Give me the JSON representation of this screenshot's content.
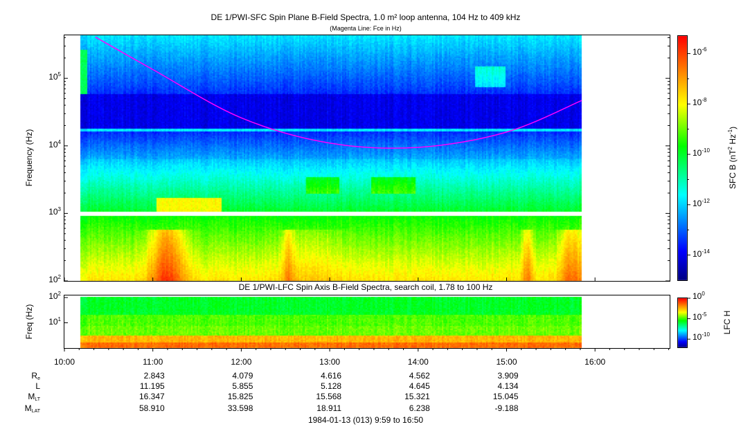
{
  "chart_data": [
    {
      "type": "heatmap",
      "title": "DE 1/PWI-SFC  Spin Plane B-Field Spectra, 1.0 m² loop antenna, 104 Hz to 409 kHz",
      "subtitle": "(Magenta Line: Fce in Hz)",
      "ylabel": "Frequency (Hz)",
      "yscale": "log",
      "ylim": [
        100,
        409000
      ],
      "yticks": [
        {
          "base": "10",
          "exp": "2"
        },
        {
          "base": "10",
          "exp": "3"
        },
        {
          "base": "10",
          "exp": "4"
        },
        {
          "base": "10",
          "exp": "5"
        }
      ],
      "xlim_hours": [
        10.0,
        16.85
      ],
      "data_time_range_hours": [
        10.18,
        15.85
      ],
      "colorbar": {
        "label": "SFC B (nT",
        "label_sup1": "2",
        "label_mid": " Hz",
        "label_sup2": "-1",
        "label_end": ")",
        "range_log10": [
          -15,
          -5.3
        ],
        "ticks": [
          {
            "base": "10",
            "exp": "-6",
            "log": -6
          },
          {
            "base": "10",
            "exp": "-8",
            "log": -8
          },
          {
            "base": "10",
            "exp": "-10",
            "log": -10
          },
          {
            "base": "10",
            "exp": "-12",
            "log": -12
          },
          {
            "base": "10",
            "exp": "-14",
            "log": -14
          }
        ]
      },
      "fce_line": {
        "color": "#ff00ff",
        "hours": [
          10.35,
          11.0,
          12.0,
          13.0,
          14.0,
          15.0,
          15.85
        ],
        "hz": [
          409000,
          135000,
          26000,
          11000,
          9500,
          16000,
          47000
        ]
      }
    },
    {
      "type": "heatmap",
      "title": "DE 1/PWI-LFC  Spin Axis B-Field Spectra, search coil, 1.78 to 100 Hz",
      "ylabel": "Freq (Hz)",
      "yscale": "log",
      "ylim": [
        1.78,
        100
      ],
      "yticks": [
        {
          "base": "10",
          "exp": "2"
        },
        {
          "base": "10",
          "exp": "1"
        }
      ],
      "colorbar": {
        "label": "LFC H",
        "range_log10": [
          -12,
          0
        ],
        "ticks": [
          {
            "base": "10",
            "exp": "0",
            "log": 0
          },
          {
            "base": "10",
            "exp": "-5",
            "log": -5
          },
          {
            "base": "10",
            "exp": "-10",
            "log": -10
          }
        ]
      }
    }
  ],
  "time_axis": {
    "labels": [
      "10:00",
      "11:00",
      "12:00",
      "13:00",
      "14:00",
      "15:00",
      "16:00"
    ],
    "hours": [
      10,
      11,
      12,
      13,
      14,
      15,
      16
    ]
  },
  "ephemeris": {
    "rows": [
      {
        "label": "R",
        "sub": "e",
        "values": [
          "2.843",
          "4.079",
          "4.616",
          "4.562",
          "3.909"
        ]
      },
      {
        "label": "L",
        "sub": "",
        "values": [
          "11.195",
          "5.855",
          "5.128",
          "4.645",
          "4.134"
        ]
      },
      {
        "label": "M",
        "sub": "LT",
        "values": [
          "16.347",
          "15.825",
          "15.568",
          "15.321",
          "15.045"
        ]
      },
      {
        "label": "M",
        "sub": "LAT",
        "values": [
          "58.910",
          "33.598",
          "18.911",
          "6.238",
          "-9.188"
        ]
      }
    ],
    "date_range": "1984-01-13 (013) 9:59 to 16:50"
  }
}
